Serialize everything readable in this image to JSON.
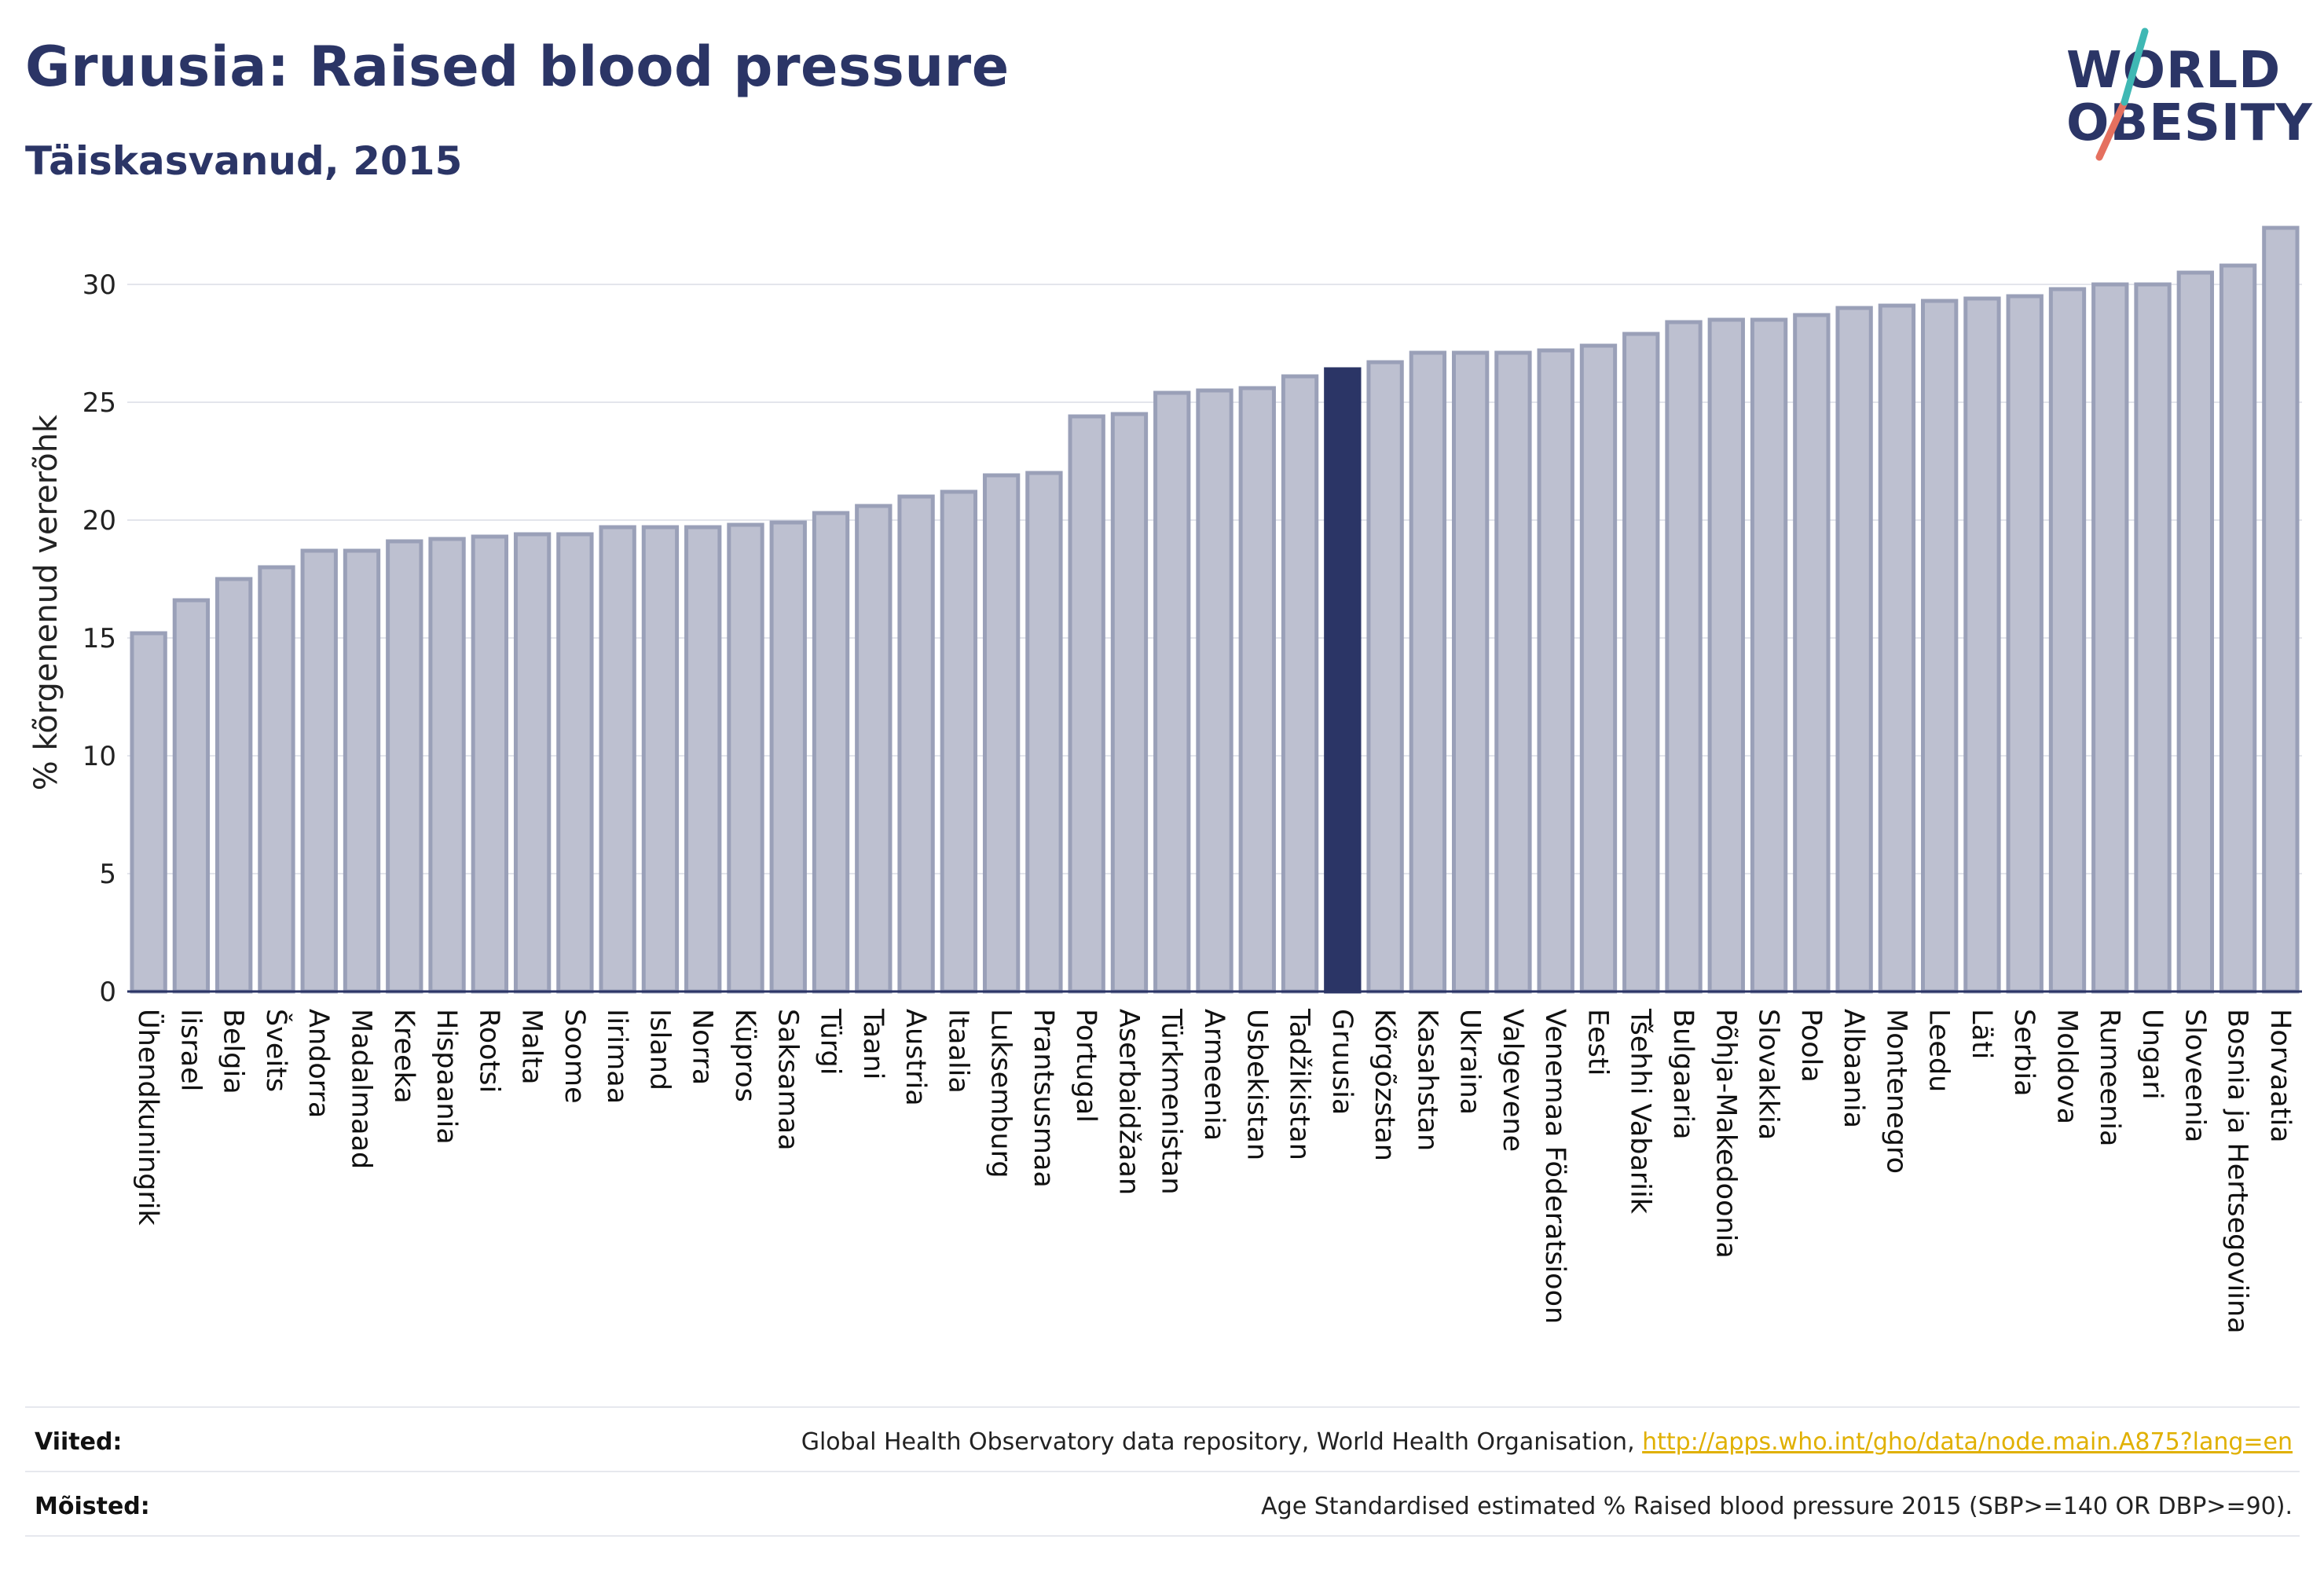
{
  "title": "Gruusia: Raised blood pressure",
  "subtitle": "Täiskasvanud, 2015",
  "logo": {
    "line1": "WORLD",
    "line2": "OBESITY"
  },
  "colors": {
    "bar": "#bdc0d0",
    "bar_stroke": "#9aa0b8",
    "highlight": "#2b3566",
    "text": "#2b3566",
    "link": "#e0b000"
  },
  "chart_data": {
    "type": "bar",
    "ylabel": "% kõrgenenud vererõhk",
    "xlabel": "",
    "ylim": [
      0,
      33
    ],
    "yticks": [
      0,
      5,
      10,
      15,
      20,
      25,
      30
    ],
    "grid": true,
    "highlight": "Gruusia",
    "categories": [
      "Ühendkuningrik",
      "Iisrael",
      "Belgia",
      "Šveits",
      "Andorra",
      "Madalmaad",
      "Kreeka",
      "Hispaania",
      "Rootsi",
      "Malta",
      "Soome",
      "Iirimaa",
      "Island",
      "Norra",
      "Küpros",
      "Saksamaa",
      "Türgi",
      "Taani",
      "Austria",
      "Itaalia",
      "Luksemburg",
      "Prantsusmaa",
      "Portugal",
      "Aserbaidžaan",
      "Türkmenistan",
      "Armeenia",
      "Usbekistan",
      "Tadžikistan",
      "Gruusia",
      "Kõrgõzstan",
      "Kasahstan",
      "Ukraina",
      "Valgevene",
      "Venemaa Föderatsioon",
      "Eesti",
      "Tšehhi Vabariik",
      "Bulgaaria",
      "Põhja-Makedoonia",
      "Slovakkia",
      "Poola",
      "Albaania",
      "Montenegro",
      "Leedu",
      "Läti",
      "Serbia",
      "Moldova",
      "Rumeenia",
      "Ungari",
      "Sloveenia",
      "Bosnia ja Hertsegoviina",
      "Horvaatia"
    ],
    "values": [
      15.2,
      16.6,
      17.5,
      18.0,
      18.7,
      18.7,
      19.1,
      19.2,
      19.3,
      19.4,
      19.4,
      19.7,
      19.7,
      19.7,
      19.8,
      19.9,
      20.3,
      20.6,
      21.0,
      21.2,
      21.9,
      22.0,
      24.4,
      24.5,
      25.4,
      25.5,
      25.6,
      26.1,
      26.4,
      26.7,
      27.1,
      27.1,
      27.1,
      27.2,
      27.4,
      27.9,
      28.4,
      28.5,
      28.5,
      28.7,
      29.0,
      29.1,
      29.3,
      29.4,
      29.5,
      29.8,
      30.0,
      30.0,
      30.5,
      30.8,
      32.4
    ]
  },
  "footer": {
    "sources_label": "Viited:",
    "sources_text": "Global Health Observatory data repository, World Health Organisation, ",
    "sources_link": "http://apps.who.int/gho/data/node.main.A875?lang=en",
    "definitions_label": "Mõisted:",
    "definitions_text": "Age Standardised estimated % Raised blood pressure 2015 (SBP>=140 OR DBP>=90)."
  }
}
